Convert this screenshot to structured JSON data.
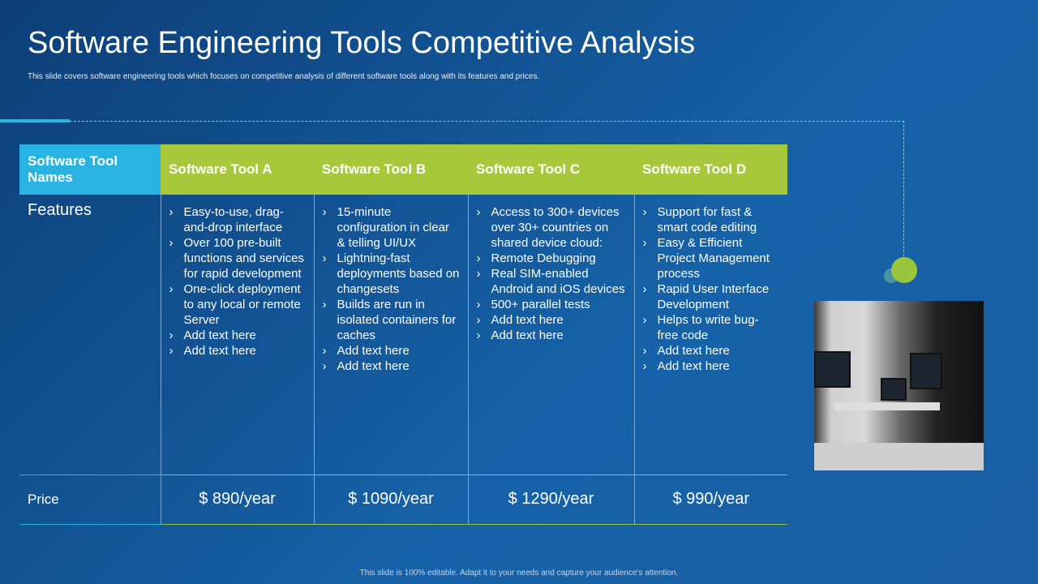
{
  "title": "Software Engineering Tools Competitive Analysis",
  "subtitle": "This slide covers software engineering tools which focuses on competitive analysis of different software tools along with its features and prices.",
  "table": {
    "header": [
      "Software Tool Names",
      "Software Tool A",
      "Software Tool B",
      "Software Tool C",
      "Software Tool D"
    ],
    "features_label": "Features",
    "features": [
      [
        "Easy-to-use, drag-and-drop interface",
        "Over 100 pre-built functions and services for rapid development",
        "One-click deployment to any local or remote Server",
        "Add text here",
        "Add text here"
      ],
      [
        "15-minute configuration in clear & telling UI/UX",
        "Lightning-fast deployments based on changesets",
        "Builds are run in isolated containers for caches",
        "Add text here",
        "Add text here"
      ],
      [
        "Access to 300+ devices over 30+ countries on shared device cloud:",
        "Remote Debugging",
        "Real SIM-enabled Android and iOS devices",
        "500+ parallel tests",
        "Add text here",
        "Add text here"
      ],
      [
        "Support for fast & smart code editing",
        "Easy & Efficient Project Management process",
        "Rapid User Interface Development",
        "Helps to write bug-free code",
        "Add text here",
        "Add text here"
      ]
    ],
    "price_label": "Price",
    "prices": [
      "$ 890/year",
      "$ 1090/year",
      "$ 1290/year",
      "$ 990/year"
    ]
  },
  "footer": "This slide is 100% editable. Adapt it to your needs and capture your audience's attention.",
  "colors": {
    "background": "#1662a8",
    "header_first": "#29b3e3",
    "header_tools": "#a8c83c"
  }
}
